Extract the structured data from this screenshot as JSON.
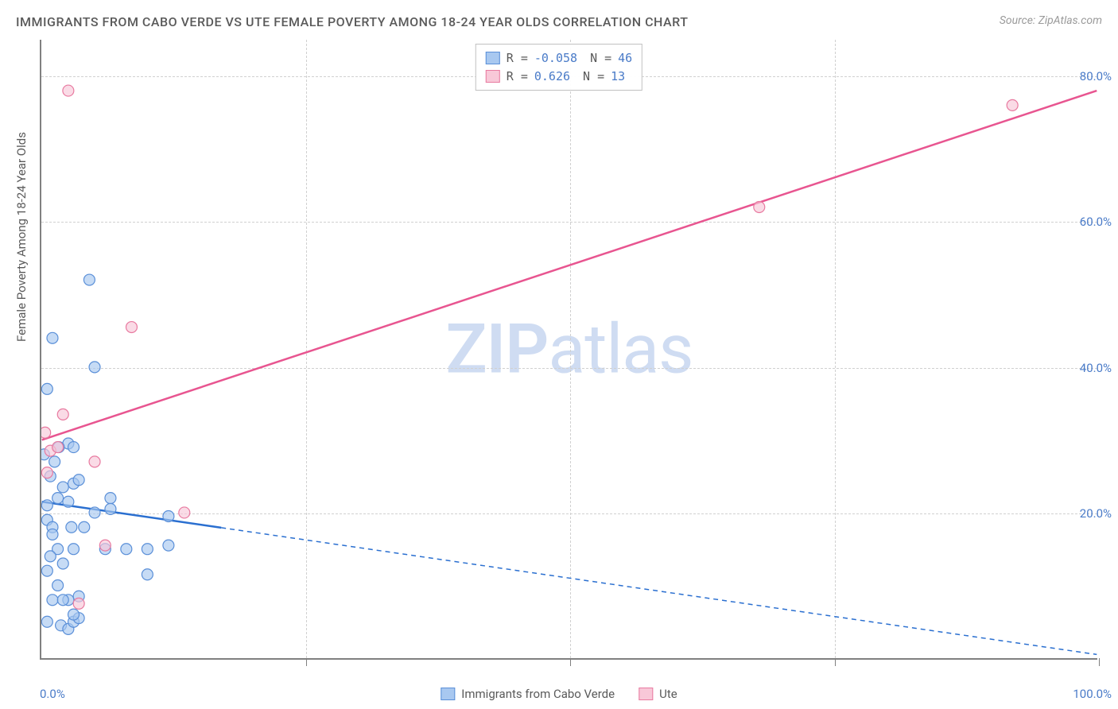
{
  "title": "IMMIGRANTS FROM CABO VERDE VS UTE FEMALE POVERTY AMONG 18-24 YEAR OLDS CORRELATION CHART",
  "source": "Source: ZipAtlas.com",
  "y_axis_label": "Female Poverty Among 18-24 Year Olds",
  "watermark_bold": "ZIP",
  "watermark_rest": "atlas",
  "chart": {
    "type": "scatter",
    "xlim": [
      0,
      100
    ],
    "ylim": [
      0,
      85
    ],
    "y_ticks": [
      20,
      40,
      60,
      80
    ],
    "y_tick_labels": [
      "20.0%",
      "40.0%",
      "60.0%",
      "80.0%"
    ],
    "x_ticks": [
      0,
      100
    ],
    "x_tick_labels": [
      "0.0%",
      "100.0%"
    ],
    "x_grid_positions": [
      25,
      50,
      75,
      100
    ],
    "background_color": "#ffffff",
    "grid_color": "#d0d0d0",
    "axis_color": "#808080",
    "marker_radius": 7,
    "marker_stroke_width": 1.2,
    "trend_line_width": 2.5,
    "series": [
      {
        "name": "Immigrants from Cabo Verde",
        "fill_color": "#a8c8f0",
        "stroke_color": "#5a8fd8",
        "line_color": "#2a6fd0",
        "R": "-0.058",
        "N": "46",
        "trend": {
          "x1": 0,
          "y1": 21.5,
          "x2": 100,
          "y2": 0.5,
          "solid_until_x": 17
        },
        "points": [
          [
            0.5,
            37
          ],
          [
            1.0,
            44
          ],
          [
            2.5,
            29.5
          ],
          [
            2.0,
            23.5
          ],
          [
            0.5,
            21
          ],
          [
            3.0,
            24
          ],
          [
            3.5,
            24.5
          ],
          [
            1.5,
            22
          ],
          [
            0.5,
            19
          ],
          [
            2.5,
            21.5
          ],
          [
            6.5,
            22
          ],
          [
            1.0,
            18
          ],
          [
            4.5,
            52
          ],
          [
            5.0,
            40
          ],
          [
            3.0,
            29
          ],
          [
            8.0,
            15
          ],
          [
            10.0,
            15
          ],
          [
            12.0,
            15.5
          ],
          [
            10.0,
            11.5
          ],
          [
            12.0,
            19.5
          ],
          [
            1.5,
            15
          ],
          [
            3.0,
            15
          ],
          [
            6.0,
            15
          ],
          [
            0.8,
            14
          ],
          [
            1.5,
            10
          ],
          [
            1.0,
            8
          ],
          [
            2.5,
            8
          ],
          [
            3.5,
            8.5
          ],
          [
            2.0,
            8
          ],
          [
            0.5,
            5
          ],
          [
            1.8,
            4.5
          ],
          [
            2.5,
            4
          ],
          [
            3.0,
            5
          ],
          [
            3.5,
            5.5
          ],
          [
            0.8,
            25
          ],
          [
            1.2,
            27
          ],
          [
            1.6,
            29
          ],
          [
            0.2,
            28
          ],
          [
            2.0,
            13
          ],
          [
            2.8,
            18
          ],
          [
            4.0,
            18
          ],
          [
            5.0,
            20
          ],
          [
            6.5,
            20.5
          ],
          [
            0.5,
            12
          ],
          [
            1.0,
            17
          ],
          [
            3.0,
            6
          ]
        ]
      },
      {
        "name": "Ute",
        "fill_color": "#f8c8d8",
        "stroke_color": "#e87aa0",
        "line_color": "#e85590",
        "R": "0.626",
        "N": "13",
        "trend": {
          "x1": 0,
          "y1": 30,
          "x2": 100,
          "y2": 78,
          "solid_until_x": 100
        },
        "points": [
          [
            2.5,
            78
          ],
          [
            92,
            76
          ],
          [
            68,
            62
          ],
          [
            8.5,
            45.5
          ],
          [
            2.0,
            33.5
          ],
          [
            0.3,
            31
          ],
          [
            0.8,
            28.5
          ],
          [
            5.0,
            27
          ],
          [
            13.5,
            20
          ],
          [
            6.0,
            15.5
          ],
          [
            0.5,
            25.5
          ],
          [
            3.5,
            7.5
          ],
          [
            1.5,
            29
          ]
        ]
      }
    ]
  },
  "legend_top": {
    "r_label": "R =",
    "n_label": "N ="
  },
  "colors": {
    "text_gray": "#5a5a5a",
    "text_blue": "#4a7bc8",
    "watermark": "#a8c0e8"
  }
}
